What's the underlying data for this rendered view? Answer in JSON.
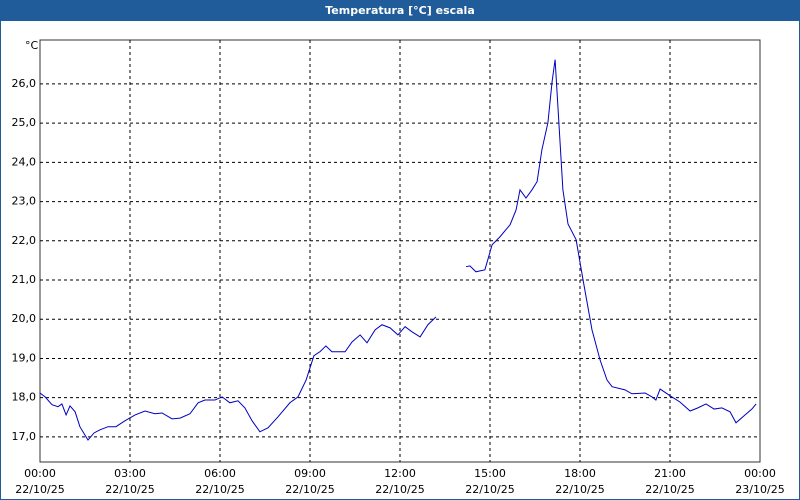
{
  "chart_data": {
    "type": "line",
    "title": "Temperatura [°C] escala",
    "y_unit": "°C",
    "xlim": [
      0,
      24
    ],
    "ylim": [
      16.36,
      27.12
    ],
    "xticks": [
      {
        "value": 0,
        "label": "00:00"
      },
      {
        "value": 3,
        "label": "03:00"
      },
      {
        "value": 6,
        "label": "06:00"
      },
      {
        "value": 9,
        "label": "09:00"
      },
      {
        "value": 12,
        "label": "12:00"
      },
      {
        "value": 15,
        "label": "15:00"
      },
      {
        "value": 18,
        "label": "18:00"
      },
      {
        "value": 21,
        "label": "21:00"
      },
      {
        "value": 24,
        "label": "00:00"
      }
    ],
    "xtick_dates": [
      "22/10/25",
      "22/10/25",
      "22/10/25",
      "22/10/25",
      "22/10/25",
      "22/10/25",
      "22/10/25",
      "22/10/25",
      "23/10/25"
    ],
    "yticks": [
      {
        "value": 17,
        "label": "17,0"
      },
      {
        "value": 18,
        "label": "18,0"
      },
      {
        "value": 19,
        "label": "19,0"
      },
      {
        "value": 20,
        "label": "20,0"
      },
      {
        "value": 21,
        "label": "21,0"
      },
      {
        "value": 22,
        "label": "22,0"
      },
      {
        "value": 23,
        "label": "23,0"
      },
      {
        "value": 24,
        "label": "24,0"
      },
      {
        "value": 25,
        "label": "25,0"
      },
      {
        "value": 26,
        "label": "26,0"
      }
    ],
    "grid": true,
    "x": [
      0,
      0.17,
      0.4,
      0.6,
      0.73,
      0.87,
      1.0,
      1.17,
      1.33,
      1.6,
      1.8,
      2.0,
      2.27,
      2.53,
      2.83,
      3.17,
      3.5,
      3.83,
      4.07,
      4.4,
      4.67,
      5.0,
      5.27,
      5.5,
      5.83,
      6.07,
      6.33,
      6.6,
      6.83,
      7.07,
      7.33,
      7.6,
      7.93,
      8.33,
      8.6,
      8.87,
      9.13,
      9.33,
      9.53,
      9.73,
      10.17,
      10.4,
      10.67,
      10.9,
      11.17,
      11.4,
      11.67,
      11.93,
      12.17,
      12.4,
      12.67,
      12.93,
      13.2,
      13.7,
      14.2,
      14.33,
      14.53,
      14.83,
      15.07,
      15.33,
      15.67,
      15.87,
      16.0,
      16.2,
      16.4,
      16.57,
      16.73,
      16.93,
      17.07,
      17.17,
      17.27,
      17.43,
      17.6,
      17.87,
      18.1,
      18.4,
      18.67,
      18.9,
      19.07,
      19.5,
      19.73,
      20.17,
      20.4,
      20.53,
      20.67,
      21.0,
      21.33,
      21.67,
      21.93,
      22.2,
      22.47,
      22.73,
      23.0,
      23.2,
      23.47,
      23.73,
      23.87
    ],
    "series": [
      {
        "name": "Temperatura",
        "color": "#0000c0",
        "values": [
          18.12,
          18.02,
          17.82,
          17.77,
          17.84,
          17.56,
          17.79,
          17.64,
          17.26,
          16.92,
          17.1,
          17.18,
          17.26,
          17.26,
          17.41,
          17.56,
          17.66,
          17.59,
          17.61,
          17.46,
          17.48,
          17.59,
          17.87,
          17.94,
          17.94,
          18.02,
          17.87,
          17.92,
          17.74,
          17.41,
          17.13,
          17.23,
          17.51,
          17.87,
          18.02,
          18.45,
          19.07,
          19.17,
          19.32,
          19.17,
          19.17,
          19.42,
          19.6,
          19.4,
          19.73,
          19.86,
          19.78,
          19.6,
          19.81,
          19.68,
          19.55,
          19.86,
          20.06,
          null,
          21.34,
          21.36,
          21.21,
          21.26,
          21.9,
          22.1,
          22.41,
          22.79,
          23.3,
          23.09,
          23.3,
          23.51,
          24.32,
          25.01,
          26.06,
          26.62,
          25.34,
          23.3,
          22.43,
          22.03,
          21.01,
          19.73,
          18.96,
          18.45,
          18.28,
          18.2,
          18.1,
          18.12,
          18.02,
          17.94,
          18.22,
          18.05,
          17.89,
          17.66,
          17.74,
          17.84,
          17.71,
          17.74,
          17.64,
          17.36,
          17.54,
          17.71,
          17.84
        ]
      }
    ]
  }
}
